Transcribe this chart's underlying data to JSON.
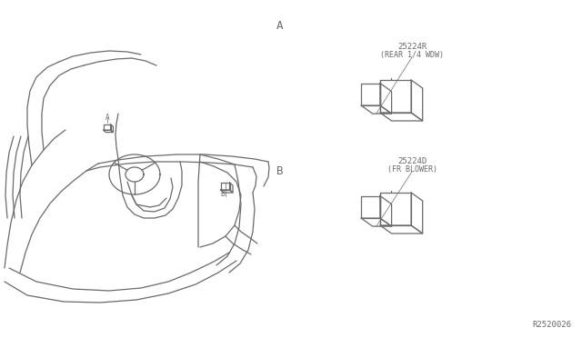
{
  "bg_color": "#ffffff",
  "line_color": "#6a6a6a",
  "text_color": "#6a6a6a",
  "part_A_label": "25224R",
  "part_A_sublabel": "(REAR 1/4 WDW)",
  "part_B_label": "25224D",
  "part_B_sublabel": "(FR BLOWER)",
  "callout_A": "A",
  "callout_B": "B",
  "ref_number": "R2520026",
  "fig_width": 6.4,
  "fig_height": 3.72,
  "dpi": 100
}
